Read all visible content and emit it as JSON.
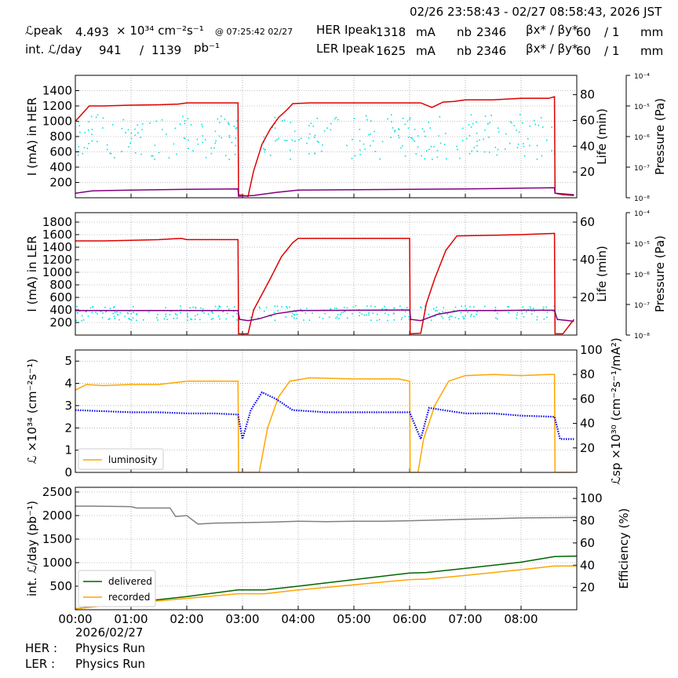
{
  "header": {
    "time_range": "02/26 23:58:43 - 02/27 08:58:43, 2026 JST",
    "lpeak_label": "ℒpeak",
    "lpeak_value": "4.493",
    "lpeak_unit": "× 10³⁴ cm⁻²s⁻¹",
    "lpeak_time": "@ 07:25:42 02/27",
    "intl_label": "int. ℒ/day",
    "intl_value1": "941",
    "intl_sep": "/",
    "intl_value2": "1139",
    "intl_unit": "pb⁻¹",
    "her_label": "HER Ipeak",
    "her_value": "1318",
    "her_unit": "mA",
    "ler_label": "LER Ipeak",
    "ler_value": "1625",
    "ler_unit": "mA",
    "nb_label": "nb",
    "nb_her": "2346",
    "nb_ler": "2346",
    "beta_label": "βx* / βy*",
    "beta_her_x": "60",
    "beta_her_y": "/ 1",
    "beta_ler_x": "60",
    "beta_ler_y": "/ 1",
    "beta_unit": "mm"
  },
  "footer": {
    "date": "2026/02/27",
    "her_label": "HER :",
    "her_status": "Physics Run",
    "ler_label": "LER :",
    "ler_status": "Physics Run"
  },
  "chart_data": [
    {
      "type": "line",
      "panel": "HER",
      "ylabel": "I (mA) in HER",
      "ylim": [
        0,
        1600
      ],
      "yticks": [
        200,
        400,
        600,
        800,
        1000,
        1200,
        1400
      ],
      "y2label": "Life (min)",
      "y2lim": [
        0,
        95
      ],
      "y2ticks": [
        20,
        40,
        60,
        80
      ],
      "y3label": "Pressure (Pa)",
      "y3ticks": [
        "10⁻⁸",
        "10⁻⁷",
        "10⁻⁶",
        "10⁻⁵",
        "10⁻⁴"
      ],
      "grid": true,
      "series": [
        {
          "color": "#dd0000",
          "points": [
            [
              0,
              1000
            ],
            [
              0.1,
              1080
            ],
            [
              0.2,
              1160
            ],
            [
              0.25,
              1200
            ],
            [
              0.5,
              1200
            ],
            [
              1.0,
              1210
            ],
            [
              1.5,
              1215
            ],
            [
              1.85,
              1225
            ],
            [
              2.0,
              1240
            ],
            [
              2.5,
              1240
            ],
            [
              2.92,
              1240
            ],
            [
              2.93,
              40
            ],
            [
              3.1,
              20
            ],
            [
              3.2,
              350
            ],
            [
              3.35,
              700
            ],
            [
              3.5,
              900
            ],
            [
              3.65,
              1050
            ],
            [
              3.8,
              1150
            ],
            [
              3.9,
              1230
            ],
            [
              4.2,
              1240
            ],
            [
              5.0,
              1240
            ],
            [
              5.8,
              1240
            ],
            [
              6.2,
              1240
            ],
            [
              6.4,
              1180
            ],
            [
              6.6,
              1250
            ],
            [
              6.8,
              1260
            ],
            [
              7.0,
              1280
            ],
            [
              7.5,
              1280
            ],
            [
              8.0,
              1300
            ],
            [
              8.5,
              1300
            ],
            [
              8.6,
              1320
            ],
            [
              8.61,
              60
            ],
            [
              8.75,
              40
            ],
            [
              8.95,
              30
            ]
          ]
        },
        {
          "color": "#800080",
          "points": [
            [
              0,
              60
            ],
            [
              0.3,
              90
            ],
            [
              1.0,
              100
            ],
            [
              2.0,
              110
            ],
            [
              2.92,
              115
            ],
            [
              2.93,
              20
            ],
            [
              3.2,
              30
            ],
            [
              3.6,
              70
            ],
            [
              4.0,
              100
            ],
            [
              5.0,
              105
            ],
            [
              6.0,
              110
            ],
            [
              7.0,
              115
            ],
            [
              8.0,
              125
            ],
            [
              8.6,
              130
            ],
            [
              8.61,
              60
            ],
            [
              8.95,
              40
            ]
          ]
        }
      ],
      "scatter": {
        "color": "#00e0e0",
        "y_range_min": 30,
        "y_range_max": 65,
        "gaps": [
          [
            2.92,
            3.35
          ],
          [
            8.6,
            9.0
          ]
        ]
      }
    },
    {
      "type": "line",
      "panel": "LER",
      "ylabel": "I (mA) in LER",
      "ylim": [
        0,
        1950
      ],
      "yticks": [
        200,
        400,
        600,
        800,
        1000,
        1200,
        1400,
        1600,
        1800
      ],
      "y2label": "Life (min)",
      "y2lim": [
        0,
        65
      ],
      "y2ticks": [
        20,
        40,
        60
      ],
      "y3label": "Pressure (Pa)",
      "y3ticks": [
        "10⁻⁸",
        "10⁻⁷",
        "10⁻⁶",
        "10⁻⁵",
        "10⁻⁴"
      ],
      "grid": true,
      "series": [
        {
          "color": "#dd0000",
          "points": [
            [
              0,
              1500
            ],
            [
              0.5,
              1500
            ],
            [
              1.0,
              1510
            ],
            [
              1.5,
              1520
            ],
            [
              1.9,
              1540
            ],
            [
              2.0,
              1520
            ],
            [
              2.92,
              1520
            ],
            [
              2.93,
              20
            ],
            [
              3.1,
              20
            ],
            [
              3.2,
              400
            ],
            [
              3.5,
              900
            ],
            [
              3.7,
              1250
            ],
            [
              3.9,
              1470
            ],
            [
              4.0,
              1540
            ],
            [
              5.0,
              1540
            ],
            [
              6.0,
              1540
            ],
            [
              6.01,
              20
            ],
            [
              6.2,
              30
            ],
            [
              6.3,
              500
            ],
            [
              6.45,
              900
            ],
            [
              6.65,
              1350
            ],
            [
              6.85,
              1580
            ],
            [
              7.5,
              1590
            ],
            [
              8.0,
              1600
            ],
            [
              8.6,
              1620
            ],
            [
              8.61,
              20
            ],
            [
              8.75,
              20
            ],
            [
              8.95,
              250
            ]
          ]
        },
        {
          "color": "#800080",
          "points": [
            [
              0,
              390
            ],
            [
              1.0,
              390
            ],
            [
              2.0,
              390
            ],
            [
              2.92,
              390
            ],
            [
              2.95,
              250
            ],
            [
              3.1,
              230
            ],
            [
              3.3,
              260
            ],
            [
              3.6,
              340
            ],
            [
              4.0,
              390
            ],
            [
              5.0,
              395
            ],
            [
              6.0,
              400
            ],
            [
              6.02,
              250
            ],
            [
              6.2,
              230
            ],
            [
              6.5,
              330
            ],
            [
              6.9,
              390
            ],
            [
              7.5,
              390
            ],
            [
              8.0,
              395
            ],
            [
              8.6,
              395
            ],
            [
              8.65,
              250
            ],
            [
              8.95,
              220
            ]
          ]
        }
      ],
      "scatter": {
        "color": "#00e0e0",
        "y_range_min": 8,
        "y_range_max": 16,
        "gaps": [
          [
            2.92,
            3.1
          ],
          [
            6.0,
            6.15
          ],
          [
            8.6,
            9.0
          ]
        ]
      }
    },
    {
      "type": "line",
      "panel": "luminosity",
      "ylabel": "ℒ ×10³⁴ (cm⁻²s⁻¹)",
      "ylim": [
        0,
        5.5
      ],
      "yticks": [
        0,
        1,
        2,
        3,
        4,
        5
      ],
      "y2label": "ℒsp ×10³⁰ (cm⁻²s⁻¹/mA²)",
      "y2lim": [
        0,
        100
      ],
      "y2ticks": [
        20,
        40,
        60,
        80,
        100
      ],
      "legend": [
        "luminosity"
      ],
      "legend_position": "lower-left",
      "grid": true,
      "series": [
        {
          "name": "luminosity",
          "color": "#ffa500",
          "points": [
            [
              0,
              3.7
            ],
            [
              0.2,
              3.95
            ],
            [
              0.5,
              3.9
            ],
            [
              1.0,
              3.95
            ],
            [
              1.5,
              3.95
            ],
            [
              2.0,
              4.1
            ],
            [
              2.5,
              4.1
            ],
            [
              2.92,
              4.1
            ],
            [
              2.93,
              0
            ],
            [
              3.3,
              0
            ],
            [
              3.45,
              2.0
            ],
            [
              3.65,
              3.4
            ],
            [
              3.85,
              4.1
            ],
            [
              4.2,
              4.25
            ],
            [
              5.0,
              4.2
            ],
            [
              5.8,
              4.2
            ],
            [
              6.0,
              4.1
            ],
            [
              6.01,
              0
            ],
            [
              6.15,
              0
            ],
            [
              6.25,
              1.5
            ],
            [
              6.45,
              3.0
            ],
            [
              6.7,
              4.1
            ],
            [
              7.0,
              4.35
            ],
            [
              7.5,
              4.4
            ],
            [
              8.0,
              4.35
            ],
            [
              8.5,
              4.4
            ],
            [
              8.6,
              4.4
            ],
            [
              8.61,
              0
            ],
            [
              8.95,
              0
            ]
          ]
        },
        {
          "name": "specific",
          "color": "#0000ee",
          "points": [
            [
              0,
              2.8
            ],
            [
              0.5,
              2.75
            ],
            [
              1.0,
              2.7
            ],
            [
              1.5,
              2.7
            ],
            [
              2.0,
              2.65
            ],
            [
              2.5,
              2.65
            ],
            [
              2.92,
              2.6
            ],
            [
              3.0,
              1.5
            ],
            [
              3.15,
              2.8
            ],
            [
              3.35,
              3.6
            ],
            [
              3.6,
              3.3
            ],
            [
              3.9,
              2.8
            ],
            [
              4.5,
              2.7
            ],
            [
              5.0,
              2.7
            ],
            [
              5.5,
              2.7
            ],
            [
              6.0,
              2.7
            ],
            [
              6.2,
              1.5
            ],
            [
              6.35,
              2.9
            ],
            [
              6.6,
              2.8
            ],
            [
              7.0,
              2.65
            ],
            [
              7.5,
              2.65
            ],
            [
              8.0,
              2.55
            ],
            [
              8.6,
              2.5
            ],
            [
              8.7,
              1.5
            ],
            [
              8.95,
              1.5
            ]
          ]
        }
      ]
    },
    {
      "type": "line",
      "panel": "integrated",
      "ylabel": "int. ℒ/day (pb⁻¹)",
      "ylim": [
        0,
        2600
      ],
      "yticks": [
        500,
        1000,
        1500,
        2000,
        2500
      ],
      "y2label": "Efficiency (%)",
      "y2lim": [
        0,
        110
      ],
      "y2ticks": [
        20,
        40,
        60,
        80,
        100
      ],
      "legend": [
        "delivered",
        "recorded"
      ],
      "legend_position": "lower-left",
      "x_ticks": [
        "00:00",
        "01:00",
        "02:00",
        "03:00",
        "04:00",
        "05:00",
        "06:00",
        "07:00",
        "08:00"
      ],
      "xlim": [
        0,
        9
      ],
      "grid": true,
      "series": [
        {
          "name": "delivered",
          "color": "#006400",
          "points": [
            [
              0,
              20
            ],
            [
              1.0,
              150
            ],
            [
              2.0,
              280
            ],
            [
              2.92,
              420
            ],
            [
              3.4,
              420
            ],
            [
              4.0,
              500
            ],
            [
              5.0,
              640
            ],
            [
              6.0,
              780
            ],
            [
              6.3,
              790
            ],
            [
              7.0,
              880
            ],
            [
              8.0,
              1010
            ],
            [
              8.6,
              1130
            ],
            [
              9.0,
              1140
            ]
          ]
        },
        {
          "name": "recorded",
          "color": "#ffa500",
          "points": [
            [
              0,
              20
            ],
            [
              1.0,
              140
            ],
            [
              2.0,
              240
            ],
            [
              2.92,
              340
            ],
            [
              3.4,
              340
            ],
            [
              4.0,
              420
            ],
            [
              5.0,
              530
            ],
            [
              6.0,
              640
            ],
            [
              6.3,
              650
            ],
            [
              7.0,
              730
            ],
            [
              8.0,
              850
            ],
            [
              8.6,
              930
            ],
            [
              9.0,
              930
            ]
          ]
        },
        {
          "name": "efficiency",
          "color": "#808080",
          "points": [
            [
              0,
              2200
            ],
            [
              0.3,
              2200
            ],
            [
              1.0,
              2190
            ],
            [
              1.1,
              2160
            ],
            [
              1.7,
              2160
            ],
            [
              1.8,
              1980
            ],
            [
              2.0,
              2000
            ],
            [
              2.2,
              1820
            ],
            [
              2.5,
              1840
            ],
            [
              3.0,
              1850
            ],
            [
              3.5,
              1860
            ],
            [
              4.0,
              1880
            ],
            [
              4.5,
              1870
            ],
            [
              5.0,
              1880
            ],
            [
              5.5,
              1880
            ],
            [
              6.0,
              1890
            ],
            [
              7.0,
              1920
            ],
            [
              8.0,
              1950
            ],
            [
              9.0,
              1960
            ]
          ]
        }
      ]
    }
  ]
}
